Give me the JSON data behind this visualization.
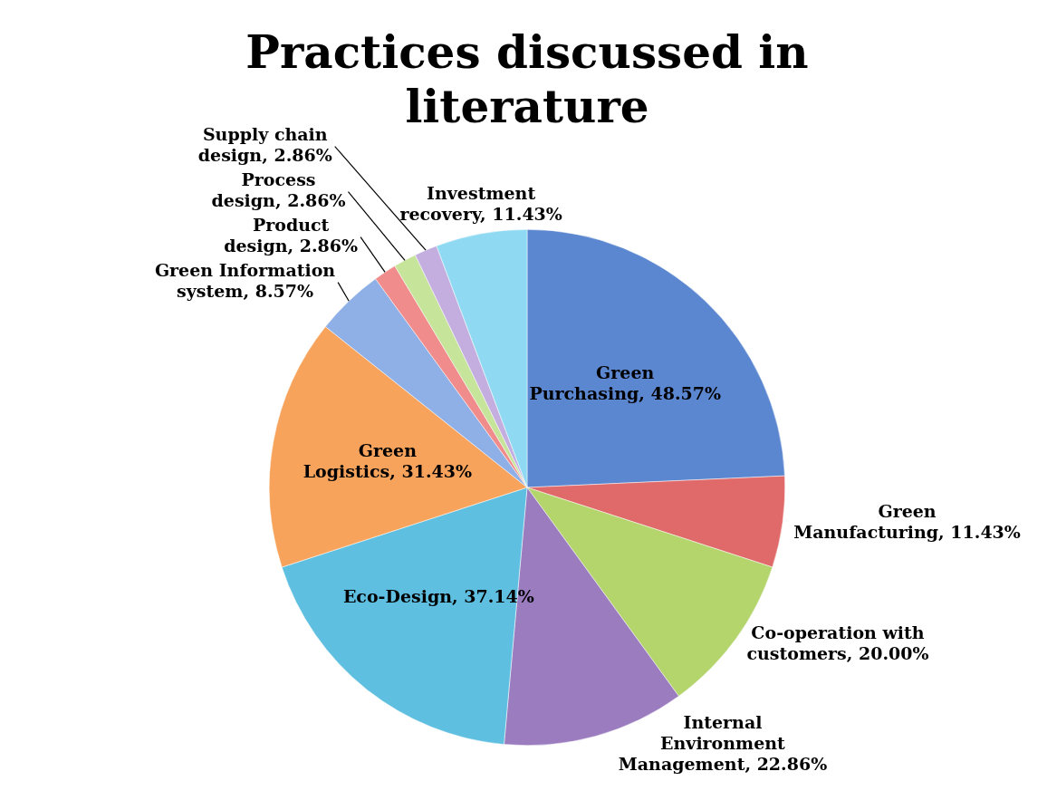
{
  "chart_data": {
    "type": "pie",
    "title": "Practices discussed in literature",
    "categories": [
      "Green Purchasing",
      "Green Manufacturing",
      "Co-operation with customers",
      "Internal Environment Management",
      "Eco-Design",
      "Green Logistics",
      "Green Information system",
      "Product design",
      "Process design",
      "Supply chain design",
      "Investment recovery"
    ],
    "values": [
      48.57,
      11.43,
      20.0,
      22.86,
      37.14,
      31.43,
      8.57,
      2.86,
      2.86,
      2.86,
      11.43
    ],
    "value_labels": [
      "48.57%",
      "11.43%",
      "20.00%",
      "22.86%",
      "37.14%",
      "31.43%",
      "8.57%",
      "2.86%",
      "2.86%",
      "2.86%",
      "11.43%"
    ],
    "colors": [
      "#5b86d0",
      "#e06a6a",
      "#b4d46c",
      "#9a7cbf",
      "#5fbfe0",
      "#f7a35c",
      "#8fb0e6",
      "#f08c8c",
      "#c6e49a",
      "#c3aedf",
      "#8fdaf2"
    ],
    "legend": false
  }
}
